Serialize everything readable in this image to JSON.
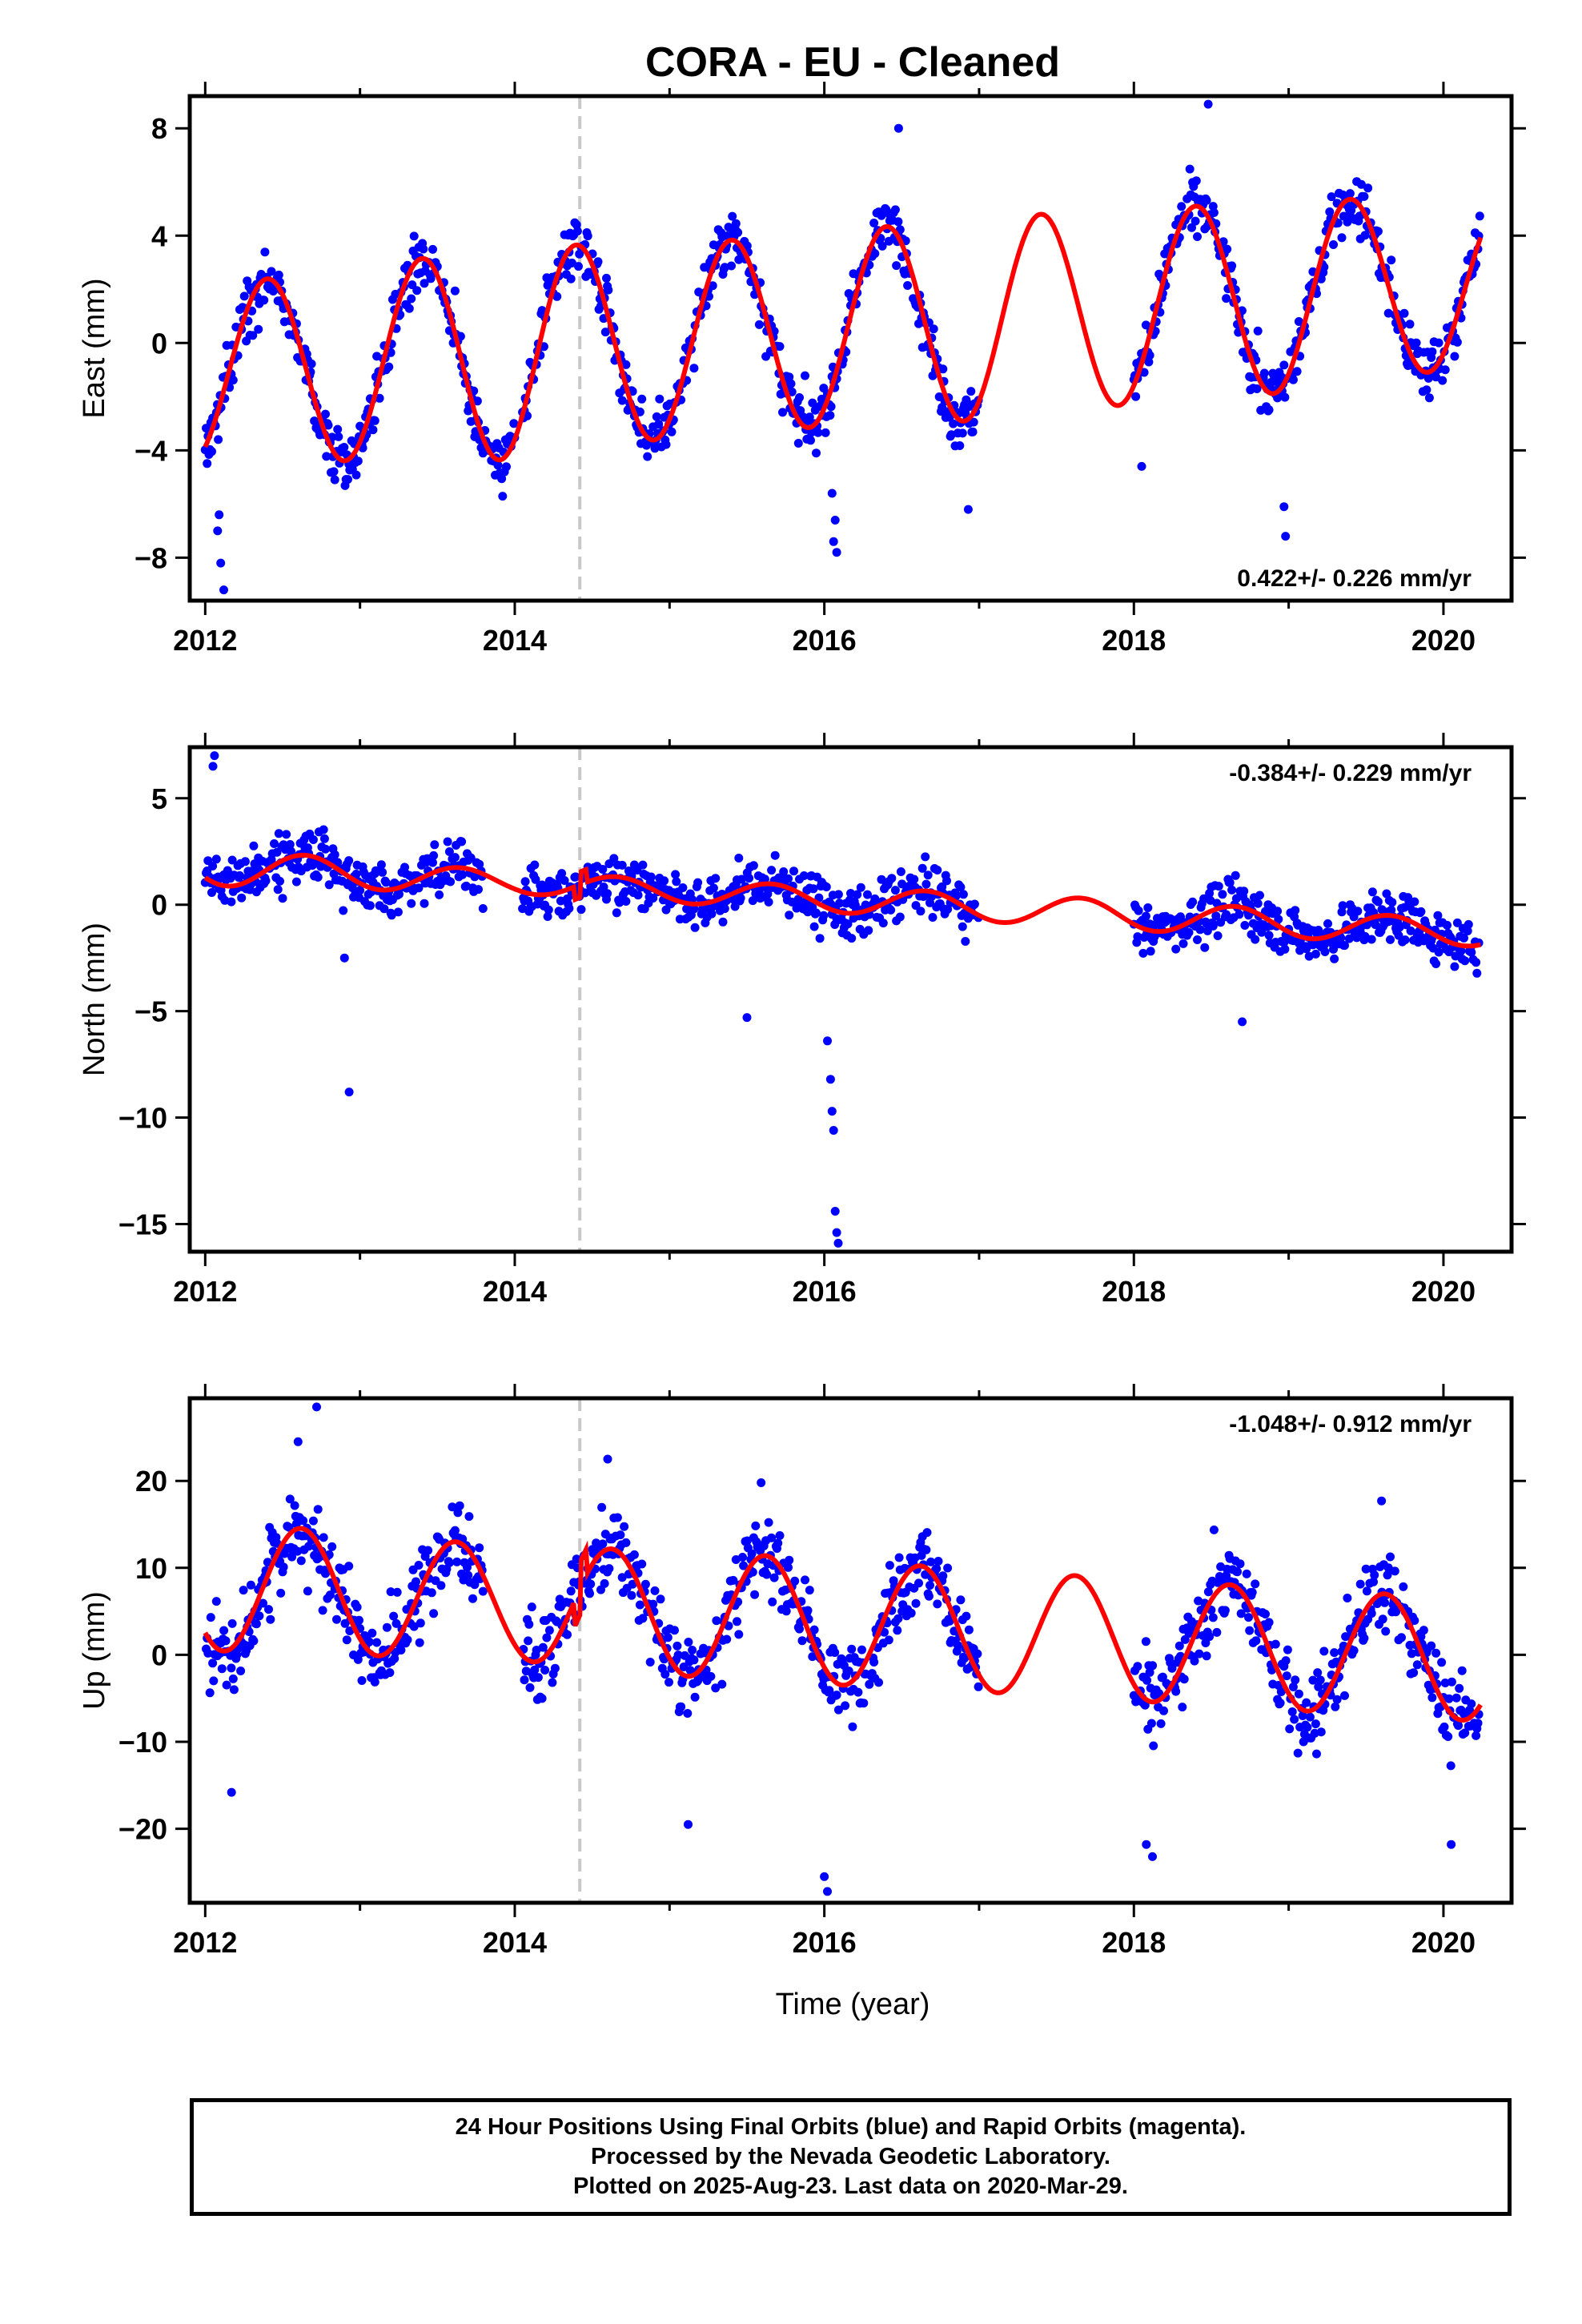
{
  "title": "CORA  - EU - Cleaned",
  "colors": {
    "observed": "#0000ff",
    "model": "#ff0000",
    "event_line": "#c8c8c8"
  },
  "xlabel": "Time (year)",
  "footnote": [
    "24 Hour Positions Using Final Orbits (blue) and Rapid Orbits (magenta).",
    "Processed by the Nevada Geodetic Laboratory.",
    "Plotted on 2025-Aug-23. Last data on 2020-Mar-29."
  ],
  "chart_data": [
    {
      "type": "scatter",
      "ylabel": "East (mm)",
      "rate_label": "0.422+/- 0.226 mm/yr",
      "xlim": [
        2011.9,
        2020.44
      ],
      "ylim": [
        -9.6,
        9.2
      ],
      "yticks": [
        -8,
        -4,
        0,
        4,
        8
      ],
      "xticks": [
        2012,
        2014,
        2016,
        2018,
        2020
      ],
      "equipment_change": 2014.42,
      "model": {
        "trend": [
          -1.2,
          0.422
        ],
        "seasonal_phase_year": 2012.4,
        "amplitude_points": [
          [
            2012.0,
            3.3
          ],
          [
            2013.0,
            3.6
          ],
          [
            2014.0,
            4.0
          ],
          [
            2015.0,
            3.6
          ],
          [
            2016.0,
            3.6
          ],
          [
            2017.0,
            3.8
          ],
          [
            2018.0,
            3.6
          ],
          [
            2019.0,
            3.6
          ],
          [
            2020.44,
            3.0
          ]
        ]
      },
      "observations": {
        "segments": [
          [
            2012.0,
            2014.0
          ],
          [
            2014.05,
            2017.0
          ],
          [
            2018.0,
            2020.24
          ]
        ],
        "noise": 0.9,
        "outliers": [
          {
            "x": 2012.08,
            "y": -7.0
          },
          {
            "x": 2012.1,
            "y": -8.2
          },
          {
            "x": 2012.12,
            "y": -9.2
          },
          {
            "x": 2012.09,
            "y": -6.4
          },
          {
            "x": 2016.05,
            "y": -5.6
          },
          {
            "x": 2016.07,
            "y": -6.6
          },
          {
            "x": 2016.08,
            "y": -7.8
          },
          {
            "x": 2016.06,
            "y": -7.4
          },
          {
            "x": 2016.93,
            "y": -6.2
          },
          {
            "x": 2018.05,
            "y": -4.6
          },
          {
            "x": 2018.97,
            "y": -6.1
          },
          {
            "x": 2018.98,
            "y": -7.2
          },
          {
            "x": 2018.48,
            "y": 8.9
          },
          {
            "x": 2016.48,
            "y": 8.0
          }
        ]
      }
    },
    {
      "type": "scatter",
      "ylabel": "North (mm)",
      "rate_label": "-0.384+/- 0.229 mm/yr",
      "xlim": [
        2011.9,
        2020.44
      ],
      "ylim": [
        -16.3,
        7.4
      ],
      "yticks": [
        -15,
        -10,
        -5,
        0,
        5
      ],
      "xticks": [
        2012,
        2014,
        2016,
        2018,
        2020
      ],
      "equipment_change": 2014.42,
      "model": {
        "trend": [
          1.8,
          -0.384
        ],
        "seasonal_phase_year": 2012.65,
        "amplitude_points": [
          [
            2012.0,
            0.9
          ],
          [
            2014.0,
            0.5
          ],
          [
            2016.0,
            0.6
          ],
          [
            2018.0,
            0.7
          ],
          [
            2020.44,
            0.6
          ]
        ]
      },
      "observations": {
        "segments": [
          [
            2012.0,
            2013.8
          ],
          [
            2014.05,
            2017.0
          ],
          [
            2018.0,
            2020.24
          ]
        ],
        "noise": 1.0,
        "outliers": [
          {
            "x": 2012.05,
            "y": 6.5
          },
          {
            "x": 2012.06,
            "y": 7.0
          },
          {
            "x": 2012.9,
            "y": -2.5
          },
          {
            "x": 2012.93,
            "y": -8.8
          },
          {
            "x": 2016.02,
            "y": -6.4
          },
          {
            "x": 2016.04,
            "y": -8.2
          },
          {
            "x": 2016.05,
            "y": -9.7
          },
          {
            "x": 2016.06,
            "y": -10.6
          },
          {
            "x": 2016.07,
            "y": -14.4
          },
          {
            "x": 2016.08,
            "y": -15.4
          },
          {
            "x": 2016.09,
            "y": -15.9
          },
          {
            "x": 2015.5,
            "y": -5.3
          },
          {
            "x": 2018.7,
            "y": -5.5
          }
        ]
      }
    },
    {
      "type": "scatter",
      "ylabel": "Up (mm)",
      "rate_label": "-1.048+/- 0.912 mm/yr",
      "xlim": [
        2011.9,
        2020.44
      ],
      "ylim": [
        -28.5,
        29.5
      ],
      "yticks": [
        -20,
        -10,
        0,
        10,
        20
      ],
      "xticks": [
        2012,
        2014,
        2016,
        2018,
        2020
      ],
      "equipment_change": 2014.42,
      "model": {
        "trend": [
          8.0,
          -1.048
        ],
        "seasonal_phase_year": 2012.62,
        "amplitude_points": [
          [
            2012.0,
            7.5
          ],
          [
            2013.0,
            7.0
          ],
          [
            2014.0,
            6.5
          ],
          [
            2015.0,
            7.2
          ],
          [
            2016.0,
            7.2
          ],
          [
            2017.0,
            7.0
          ],
          [
            2018.0,
            7.0
          ],
          [
            2019.0,
            7.0
          ],
          [
            2020.44,
            7.0
          ]
        ]
      },
      "observations": {
        "segments": [
          [
            2012.0,
            2013.8
          ],
          [
            2014.05,
            2017.0
          ],
          [
            2018.0,
            2020.24
          ]
        ],
        "noise": 4.0,
        "outliers": [
          {
            "x": 2012.72,
            "y": 28.5
          },
          {
            "x": 2012.6,
            "y": 24.5
          },
          {
            "x": 2014.6,
            "y": 22.5
          },
          {
            "x": 2016.0,
            "y": -25.5
          },
          {
            "x": 2016.02,
            "y": -27.2
          },
          {
            "x": 2018.12,
            "y": -23.2
          },
          {
            "x": 2018.08,
            "y": -21.8
          },
          {
            "x": 2020.05,
            "y": -21.8
          },
          {
            "x": 2019.6,
            "y": 17.7
          },
          {
            "x": 2012.17,
            "y": -15.8
          },
          {
            "x": 2015.12,
            "y": -19.5
          }
        ]
      }
    }
  ]
}
